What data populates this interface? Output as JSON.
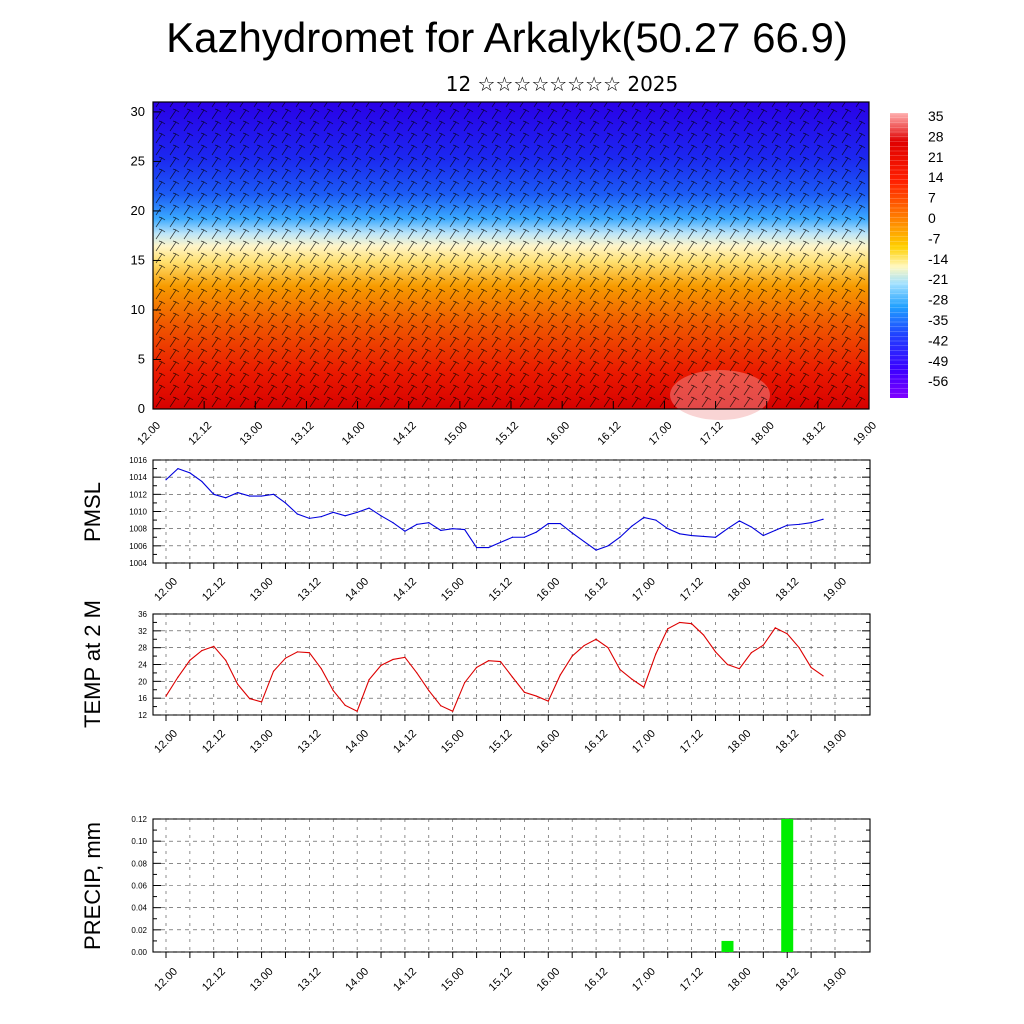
{
  "title": "Kazhydromet for Arkalyk(50.27 66.9)",
  "subtitle": "12 ☆☆☆☆☆☆☆☆ 2025",
  "colors": {
    "line_pmsl": "#0000dd",
    "line_temp": "#dd0000",
    "bar_precip": "#00ee00",
    "grid": "#000000"
  },
  "x_tick_labels": [
    "12.00",
    "12.12",
    "13.00",
    "13.12",
    "14.00",
    "14.12",
    "15.00",
    "15.12",
    "16.00",
    "16.12",
    "17.00",
    "17.12",
    "18.00",
    "18.12",
    "19.00"
  ],
  "chart_data": [
    {
      "type": "heatmap",
      "y_tick_labels": [
        "0",
        "5",
        "10",
        "15",
        "20",
        "25",
        "30"
      ],
      "ylim": [
        0,
        31
      ],
      "colorbar": {
        "labels": [
          "35",
          "28",
          "21",
          "14",
          "7",
          "0",
          "-7",
          "-14",
          "-21",
          "-28",
          "-35",
          "-42",
          "-49",
          "-56"
        ],
        "range": [
          -63,
          42
        ]
      },
      "note_overlay": "wind barbs"
    },
    {
      "type": "line",
      "ylabel": "PMSL",
      "ylim": [
        1004,
        1016
      ],
      "y_tick_labels": [
        "1004",
        "1006",
        "1008",
        "1010",
        "1012",
        "1014",
        "1016"
      ],
      "x": [
        0,
        3,
        6,
        9,
        12,
        15,
        18,
        21,
        24,
        27,
        30,
        33,
        36,
        39,
        42,
        45,
        48,
        51,
        54,
        57,
        60,
        63,
        66,
        69,
        72,
        75,
        78,
        81,
        84,
        87,
        90,
        93,
        96,
        99,
        102,
        105,
        108,
        111,
        114,
        117,
        120,
        123,
        126,
        129,
        132,
        135,
        138,
        141,
        144,
        147,
        150,
        153,
        156,
        159,
        162,
        165
      ],
      "values": [
        1013.7,
        1015,
        1014.5,
        1013.5,
        1012,
        1011.6,
        1012.2,
        1011.8,
        1011.8,
        1012,
        1011,
        1009.7,
        1009.2,
        1009.4,
        1009.9,
        1009.5,
        1009.9,
        1010.4,
        1009.5,
        1008.7,
        1007.7,
        1008.5,
        1008.7,
        1007.8,
        1008,
        1007.9,
        1005.8,
        1005.8,
        1006.4,
        1007,
        1007,
        1007.6,
        1008.6,
        1008.6,
        1007.5,
        1006.5,
        1005.5,
        1006,
        1007,
        1008.3,
        1009.3,
        1009,
        1008,
        1007.4,
        1007.2,
        1007.1,
        1007,
        1008,
        1008.9,
        1008.2,
        1007.2,
        1007.8,
        1008.4,
        1008.5,
        1008.7,
        1009.1
      ]
    },
    {
      "type": "line",
      "ylabel": "TEMP at 2 M",
      "ylim": [
        12,
        36
      ],
      "y_tick_labels": [
        "12",
        "16",
        "20",
        "24",
        "28",
        "32",
        "36"
      ],
      "x": [
        0,
        3,
        6,
        9,
        12,
        15,
        18,
        21,
        24,
        27,
        30,
        33,
        36,
        39,
        42,
        45,
        48,
        51,
        54,
        57,
        60,
        63,
        66,
        69,
        72,
        75,
        78,
        81,
        84,
        87,
        90,
        93,
        96,
        99,
        102,
        105,
        108,
        111,
        114,
        117,
        120,
        123,
        126,
        129,
        132,
        135,
        138,
        141,
        144,
        147,
        150,
        153,
        156,
        159,
        162,
        165
      ],
      "values": [
        16.5,
        21,
        25,
        27.3,
        28.3,
        25,
        19.3,
        15.9,
        15.1,
        22.4,
        25.5,
        27,
        26.8,
        23,
        17.8,
        14.3,
        12.9,
        20.4,
        23.8,
        25.2,
        25.7,
        22,
        17.8,
        14.2,
        12.9,
        19.7,
        23.3,
        24.9,
        24.7,
        21,
        17.4,
        16.5,
        15.3,
        21.5,
        26,
        28.5,
        30,
        28,
        22.8,
        20.5,
        18.6,
        26.5,
        32.5,
        34,
        33.7,
        31,
        27,
        24,
        23,
        26.8,
        28.6,
        32.7,
        31.3,
        28,
        23.3,
        21.3
      ]
    },
    {
      "type": "bar",
      "ylabel": "PRECIP, mm",
      "ylim": [
        0,
        0.12
      ],
      "y_tick_labels": [
        "0.00",
        "0.02",
        "0.04",
        "0.06",
        "0.08",
        "0.10",
        "0.12"
      ],
      "x": [
        141,
        156
      ],
      "values": [
        0.01,
        0.12
      ]
    }
  ]
}
